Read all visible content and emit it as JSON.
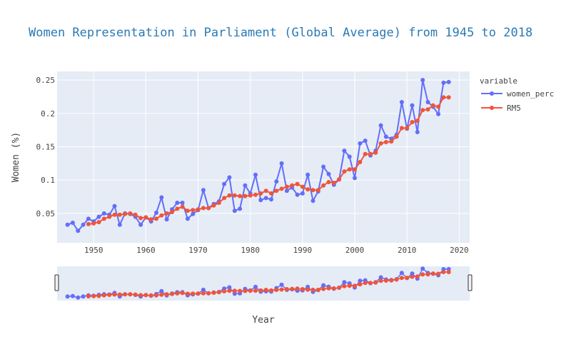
{
  "chart_data": {
    "type": "line",
    "title": "Women Representation in Parliament (Global Average) from 1945 to 2018",
    "xlabel": "Year",
    "ylabel": "Women (%)",
    "xlim": [
      1943,
      2022
    ],
    "ylim": [
      0.006,
      0.263
    ],
    "x_ticks": [
      1950,
      1960,
      1970,
      1980,
      1990,
      2000,
      2010,
      2020
    ],
    "x_tick_labels": [
      "1950",
      "1960",
      "1970",
      "1980",
      "1990",
      "2000",
      "2010",
      "2020"
    ],
    "y_ticks": [
      0.05,
      0.1,
      0.15,
      0.2,
      0.25
    ],
    "y_tick_labels": [
      "0.05",
      "0.1",
      "0.15",
      "0.2",
      "0.25"
    ],
    "grid": true,
    "legend": {
      "title": "variable",
      "placement": "top-right outside"
    },
    "range_slider": true,
    "x": [
      1945,
      1946,
      1947,
      1948,
      1949,
      1950,
      1951,
      1952,
      1953,
      1954,
      1955,
      1956,
      1957,
      1958,
      1959,
      1960,
      1961,
      1962,
      1963,
      1964,
      1965,
      1966,
      1967,
      1968,
      1969,
      1970,
      1971,
      1972,
      1973,
      1974,
      1975,
      1976,
      1977,
      1978,
      1979,
      1980,
      1981,
      1982,
      1983,
      1984,
      1985,
      1986,
      1987,
      1988,
      1989,
      1990,
      1991,
      1992,
      1993,
      1994,
      1995,
      1996,
      1997,
      1998,
      1999,
      2000,
      2001,
      2002,
      2003,
      2004,
      2005,
      2006,
      2007,
      2008,
      2009,
      2010,
      2011,
      2012,
      2013,
      2014,
      2015,
      2016,
      2017,
      2018
    ],
    "series": [
      {
        "name": "women_perc",
        "color": "#636efa",
        "values": [
          0.033,
          0.036,
          0.024,
          0.033,
          0.042,
          0.038,
          0.045,
          0.05,
          0.048,
          0.061,
          0.033,
          0.05,
          0.049,
          0.045,
          0.033,
          0.044,
          0.038,
          0.051,
          0.074,
          0.041,
          0.056,
          0.066,
          0.066,
          0.042,
          0.049,
          0.055,
          0.085,
          0.058,
          0.064,
          0.068,
          0.094,
          0.104,
          0.054,
          0.057,
          0.092,
          0.08,
          0.108,
          0.07,
          0.073,
          0.071,
          0.098,
          0.125,
          0.084,
          0.089,
          0.078,
          0.08,
          0.108,
          0.069,
          0.083,
          0.12,
          0.109,
          0.093,
          0.101,
          0.144,
          0.135,
          0.103,
          0.155,
          0.159,
          0.137,
          0.144,
          0.182,
          0.165,
          0.162,
          0.168,
          0.217,
          0.177,
          0.212,
          0.172,
          0.25,
          0.217,
          0.21,
          0.199,
          0.246,
          0.247
        ]
      },
      {
        "name": "RM5",
        "color": "#ef553b",
        "values": [
          null,
          null,
          null,
          null,
          0.034,
          0.035,
          0.037,
          0.042,
          0.045,
          0.048,
          0.048,
          0.049,
          0.05,
          0.048,
          0.043,
          0.044,
          0.041,
          0.042,
          0.047,
          0.05,
          0.052,
          0.057,
          0.06,
          0.054,
          0.055,
          0.056,
          0.058,
          0.058,
          0.062,
          0.066,
          0.073,
          0.077,
          0.077,
          0.076,
          0.076,
          0.077,
          0.078,
          0.08,
          0.084,
          0.08,
          0.084,
          0.087,
          0.09,
          0.092,
          0.094,
          0.09,
          0.086,
          0.085,
          0.085,
          0.092,
          0.097,
          0.096,
          0.101,
          0.113,
          0.116,
          0.116,
          0.127,
          0.139,
          0.139,
          0.141,
          0.155,
          0.157,
          0.158,
          0.165,
          0.178,
          0.178,
          0.187,
          0.189,
          0.205,
          0.206,
          0.212,
          0.21,
          0.224,
          0.224
        ]
      }
    ]
  }
}
